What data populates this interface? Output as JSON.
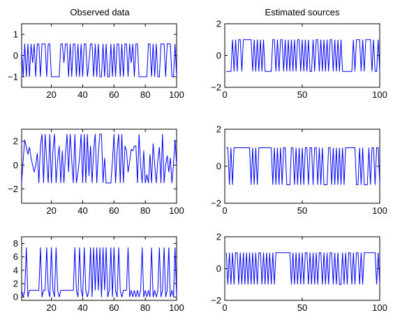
{
  "figure": {
    "titles": {
      "left": "Observed data",
      "right": "Estimated sources"
    }
  },
  "chart_data": [
    {
      "type": "line",
      "title": "Observed data",
      "xlabel": "",
      "ylabel": "",
      "xlim": [
        1,
        100
      ],
      "ylim": [
        -1.5,
        1.5
      ],
      "xticks": [
        20,
        40,
        60,
        80,
        100
      ],
      "yticks": [
        -1,
        0,
        1
      ],
      "series": [
        {
          "x_start": 1,
          "values": [
            0.25,
            -1,
            0.55,
            -1,
            0.55,
            -1,
            0.55,
            -0.35,
            0.55,
            -1,
            0.55,
            0.55,
            -1,
            0.55,
            0.55,
            0.55,
            -1,
            0.55,
            0.55,
            -1,
            -1,
            -1,
            -1,
            -1,
            -1,
            0.55,
            0.55,
            -0.35,
            0.55,
            0.55,
            -1,
            0.55,
            -1,
            0.55,
            0.55,
            -1,
            0.55,
            -1,
            0.55,
            -1,
            0.55,
            0.55,
            -1,
            -0.35,
            0.55,
            0.55,
            -1,
            0.55,
            -1,
            0.55,
            -1,
            -1,
            0.55,
            -1,
            0.55,
            -1,
            -1,
            0.55,
            -1,
            0.55,
            -1,
            0.55,
            0.55,
            -1,
            0.55,
            -1,
            0.55,
            0.55,
            -1,
            0.55,
            -0.35,
            0.55,
            -1,
            0.55,
            0.55,
            -1,
            -1,
            -1,
            -1,
            -1,
            -1,
            0.55,
            0.55,
            -1,
            0.55,
            -1,
            0.55,
            -1,
            -1,
            0.55,
            0.55,
            0.55,
            -1,
            0.55,
            0.55,
            0.55,
            -1,
            -1,
            0.55,
            -1
          ]
        }
      ]
    },
    {
      "type": "line",
      "title": "Estimated sources",
      "xlabel": "",
      "ylabel": "",
      "xlim": [
        0,
        100
      ],
      "ylim": [
        -2,
        2
      ],
      "xticks": [
        0,
        50,
        100
      ],
      "yticks": [
        -2,
        0,
        2
      ],
      "series": [
        {
          "x_start": 1,
          "values": [
            -1,
            -1,
            -1,
            -1,
            1,
            -1,
            1,
            -1,
            1,
            1,
            -1,
            1,
            1,
            1,
            1,
            1,
            1,
            -1,
            1,
            -1,
            1,
            -1,
            1,
            -1,
            1,
            -1,
            -1,
            -1,
            -1,
            -1,
            1,
            1,
            -1,
            1,
            -1,
            1,
            1,
            -1,
            1,
            -1,
            1,
            -1,
            1,
            -1,
            1,
            -1,
            1,
            1,
            -1,
            1,
            -1,
            1,
            -1,
            1,
            -1,
            -1,
            1,
            -1,
            1,
            1,
            -1,
            1,
            -1,
            1,
            -1,
            1,
            -1,
            1,
            1,
            -1,
            1,
            -1,
            1,
            -1,
            1,
            -1,
            -1,
            -1,
            -1,
            -1,
            -1,
            -1,
            1,
            -1,
            1,
            1,
            1,
            -1,
            1,
            -1,
            1,
            1,
            1,
            1,
            -1,
            1,
            -1,
            -1,
            1,
            -1
          ]
        }
      ]
    },
    {
      "type": "line",
      "title": "",
      "xlabel": "",
      "ylabel": "",
      "xlim": [
        1,
        100
      ],
      "ylim": [
        -3.2,
        3
      ],
      "xticks": [
        20,
        40,
        60,
        80,
        100
      ],
      "yticks": [
        -2,
        0,
        2
      ],
      "series": [
        {
          "x_start": 1,
          "values": [
            -1.5,
            0.5,
            2.1,
            1.5,
            0.9,
            1.5,
            0.6,
            0.0,
            -0.6,
            0.0,
            1.0,
            -1.5,
            1.6,
            2.6,
            -1.5,
            2.6,
            0.4,
            -1.5,
            2.6,
            -1.5,
            1.2,
            2.6,
            -1.5,
            0.4,
            1.6,
            -1.5,
            1.2,
            -1.5,
            0.9,
            2.6,
            -0.6,
            2.6,
            0.4,
            -1.5,
            2.6,
            -1.5,
            -0.6,
            0.6,
            2.6,
            -1.5,
            2.6,
            -1.5,
            2.6,
            -0.9,
            1.6,
            -1.5,
            1.2,
            2.6,
            -1.5,
            1.0,
            2.6,
            2.6,
            -1.5,
            0.6,
            -1.5,
            -1.5,
            -1.5,
            -1.5,
            0.3,
            2.6,
            -1.5,
            1.2,
            2.6,
            -1.5,
            2.6,
            -1.5,
            1.6,
            1.2,
            -0.6,
            0.3,
            1.3,
            1.2,
            1.6,
            1.6,
            -1.5,
            2.6,
            0.0,
            -1.5,
            1.2,
            -1.5,
            -0.8,
            -1.5,
            0.9,
            -1.5,
            1.8,
            0.0,
            -1.5,
            0.4,
            1.5,
            -1.5,
            2.6,
            -1.5,
            0.0,
            0.8,
            -0.6,
            0.6,
            -1.5,
            0.0,
            2.1,
            0.0
          ]
        }
      ]
    },
    {
      "type": "line",
      "title": "",
      "xlabel": "",
      "ylabel": "",
      "xlim": [
        0,
        100
      ],
      "ylim": [
        -2,
        2
      ],
      "xticks": [
        0,
        50,
        100
      ],
      "yticks": [
        -2,
        0,
        2
      ],
      "series": [
        {
          "x_start": 1,
          "values": [
            1,
            1,
            -1,
            1,
            -1,
            1,
            1,
            1,
            1,
            1,
            1,
            1,
            1,
            1,
            1,
            1,
            -1,
            1,
            -1,
            1,
            -1,
            1,
            1,
            1,
            1,
            1,
            1,
            1,
            1,
            1,
            -1,
            1,
            -1,
            1,
            -1,
            1,
            -1,
            1,
            1,
            -1,
            -1,
            -1,
            1,
            1,
            -1,
            1,
            -1,
            1,
            -1,
            1,
            -1,
            1,
            1,
            -1,
            1,
            1,
            -1,
            1,
            1,
            -1,
            1,
            -1,
            1,
            -1,
            -1,
            -1,
            1,
            1,
            -1,
            1,
            -1,
            1,
            -1,
            1,
            -1,
            1,
            -1,
            1,
            1,
            1,
            1,
            1,
            1,
            1,
            -1,
            -1,
            1,
            -1,
            1,
            -1,
            -1,
            -1,
            1,
            -1,
            1,
            1,
            -1,
            1,
            1,
            -1
          ]
        }
      ]
    },
    {
      "type": "line",
      "title": "",
      "xlabel": "",
      "ylabel": "",
      "xlim": [
        1,
        100
      ],
      "ylim": [
        -0.5,
        9
      ],
      "xticks": [
        20,
        40,
        60,
        80,
        100
      ],
      "yticks": [
        0,
        2,
        4,
        6,
        8
      ],
      "series": [
        {
          "x_start": 1,
          "values": [
            1,
            0,
            1,
            7.4,
            0,
            1,
            1,
            1,
            1,
            1,
            1,
            1,
            7.4,
            0,
            1,
            1,
            7.4,
            1,
            0,
            7.4,
            1,
            0,
            7.4,
            1,
            0,
            1,
            1,
            1,
            1,
            1,
            1,
            1,
            1,
            1,
            7.4,
            1,
            0,
            7.4,
            1,
            0,
            7.4,
            1,
            0,
            1,
            7.4,
            0,
            7.4,
            1,
            7.4,
            1,
            7.4,
            0,
            7.4,
            1,
            7.4,
            0,
            1,
            7.4,
            0,
            7.4,
            1,
            0,
            7.4,
            1,
            0,
            1,
            1,
            1,
            7.4,
            0,
            1,
            0,
            1,
            0,
            1,
            0,
            1,
            7.4,
            0,
            1,
            0,
            1,
            0,
            7.4,
            0,
            1,
            0,
            1,
            7.4,
            0,
            1,
            7.4,
            0,
            1,
            7.4,
            0,
            1,
            0,
            7.4,
            0
          ]
        }
      ]
    },
    {
      "type": "line",
      "title": "",
      "xlabel": "",
      "ylabel": "",
      "xlim": [
        0,
        100
      ],
      "ylim": [
        -2,
        2
      ],
      "xticks": [
        0,
        50,
        100
      ],
      "yticks": [
        -2,
        0,
        2
      ],
      "series": [
        {
          "x_start": 1,
          "values": [
            1,
            -1,
            1,
            -1,
            1,
            -1,
            1,
            1,
            -1,
            1,
            -1,
            1,
            -1,
            1,
            -1,
            1,
            -1,
            1,
            -1,
            1,
            -1,
            1,
            1,
            -1,
            1,
            -1,
            1,
            -1,
            1,
            -1,
            1,
            -1,
            1,
            1,
            1,
            1,
            1,
            1,
            1,
            1,
            1,
            1,
            -1,
            1,
            -1,
            1,
            -1,
            1,
            -1,
            1,
            -1,
            1,
            1,
            -1,
            1,
            -1,
            1,
            -1,
            1,
            -1,
            1,
            1,
            -1,
            1,
            -1,
            1,
            -1,
            1,
            1,
            -1,
            1,
            -1,
            1,
            -1,
            -1,
            1,
            -1,
            1,
            -1,
            1,
            1,
            -1,
            1,
            -1,
            1,
            1,
            -1,
            1,
            -1,
            1,
            1,
            1,
            1,
            1,
            1,
            1,
            1,
            -1,
            1,
            -1
          ]
        }
      ]
    }
  ]
}
